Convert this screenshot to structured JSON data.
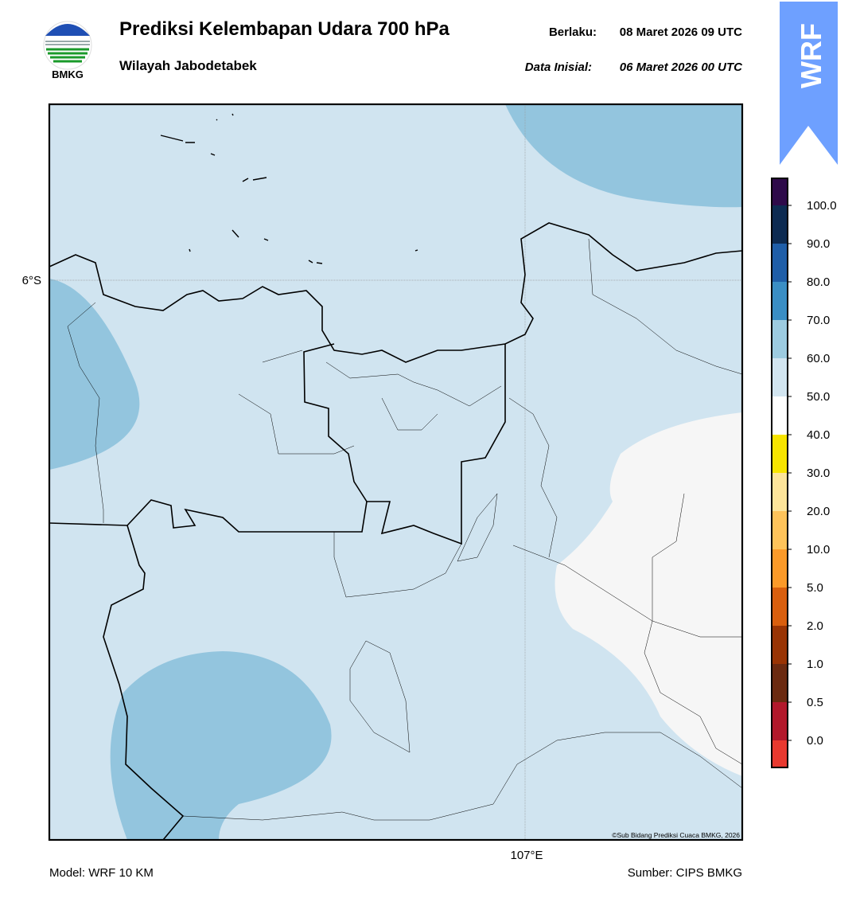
{
  "header": {
    "title": "Prediksi Kelembapan Udara 700 hPa",
    "subtitle": "Wilayah Jabodetabek",
    "logo_text": "BMKG",
    "valid_label": "Berlaku:",
    "valid_value": "08 Maret 2026 09 UTC",
    "init_label": "Data Inisial:",
    "init_value": "06 Maret 2026 00 UTC",
    "badge": "WRF"
  },
  "map": {
    "lat_label": "6°S",
    "lon_label": "107°E",
    "credit": "©Sub Bidang Prediksi Cuaca BMKG, 2026"
  },
  "colorbar": {
    "labels": [
      "100.0",
      "90.0",
      "80.0",
      "70.0",
      "60.0",
      "50.0",
      "40.0",
      "30.0",
      "20.0",
      "10.0",
      "5.0",
      "2.0",
      "1.0",
      "0.5",
      "0.0"
    ],
    "colors": [
      "#2e0a4a",
      "#0d2b52",
      "#1f5ea8",
      "#3a8ec4",
      "#9ccbe0",
      "#d2e5f0",
      "#ffffff",
      "#f7e400",
      "#fce49a",
      "#fec35a",
      "#fb9a29",
      "#d95f0e",
      "#993404",
      "#6b2a10",
      "#b2182b",
      "#e8392f"
    ]
  },
  "footer": {
    "model": "Model: WRF 10 KM",
    "source": "Sumber: CIPS BMKG"
  }
}
